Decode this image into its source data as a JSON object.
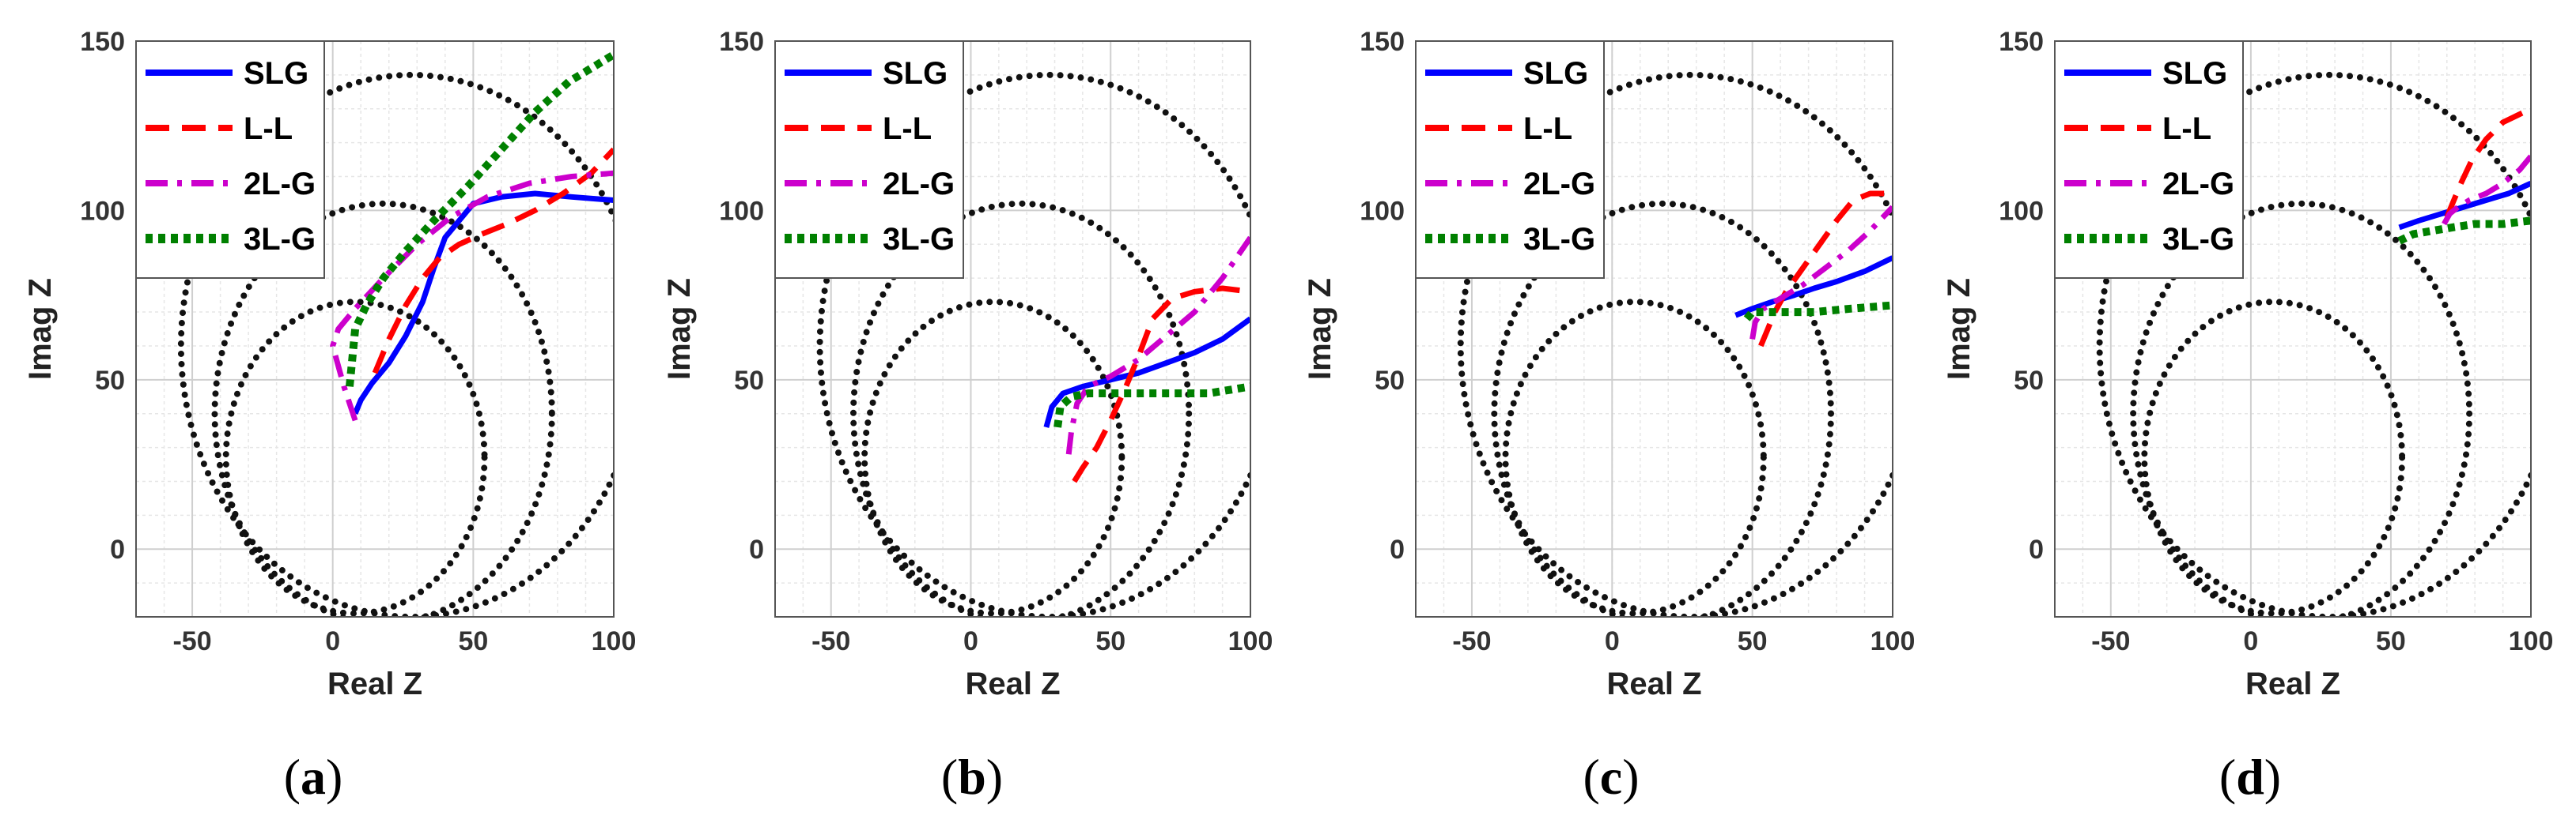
{
  "chart_data": [
    {
      "type": "line",
      "panel": "a",
      "caption_open": "(",
      "caption_letter": "a",
      "caption_close": ")",
      "xlabel": "Real Z",
      "ylabel": "Imag Z",
      "xlim": [
        -70,
        100
      ],
      "ylim": [
        -20,
        150
      ],
      "xticks": [
        -50,
        0,
        50,
        100
      ],
      "yticks": [
        0,
        50,
        100,
        150
      ],
      "grid": true,
      "legend_position": "top-left",
      "circles": [
        {
          "name": "small-circle",
          "center": [
            8,
            27
          ],
          "radius": [
            46,
            46
          ]
        },
        {
          "name": "middle-circle",
          "center": [
            18,
            40
          ],
          "radius": [
            60,
            62
          ]
        },
        {
          "name": "large-circle",
          "center": [
            28,
            60
          ],
          "radius": [
            82,
            80
          ]
        }
      ],
      "series": [
        {
          "name": "SLG",
          "color": "#0000ff",
          "dash": "solid",
          "x": [
            8,
            10,
            14,
            20,
            26,
            32,
            36,
            40,
            50,
            60,
            72,
            85,
            100
          ],
          "y": [
            40,
            44,
            49,
            55,
            63,
            73,
            83,
            92,
            102,
            104,
            105,
            104,
            103
          ]
        },
        {
          "name": "L-L",
          "color": "#ff0000",
          "dash": "dashed",
          "x": [
            15,
            20,
            26,
            32,
            38,
            45,
            53,
            62,
            72,
            82,
            92,
            100
          ],
          "y": [
            52,
            62,
            72,
            80,
            86,
            90,
            93,
            96,
            100,
            105,
            111,
            118
          ]
        },
        {
          "name": "2L-G",
          "color": "#cc00cc",
          "dash": "dashdot",
          "x": [
            8,
            4,
            0,
            2,
            8,
            18,
            30,
            42,
            55,
            70,
            85,
            100
          ],
          "y": [
            38,
            48,
            60,
            65,
            71,
            80,
            90,
            98,
            104,
            108,
            110,
            111
          ]
        },
        {
          "name": "3L-G",
          "color": "#008000",
          "dash": "dotted",
          "x": [
            6,
            8,
            12,
            18,
            26,
            36,
            48,
            60,
            72,
            84,
            100
          ],
          "y": [
            48,
            65,
            72,
            80,
            88,
            97,
            107,
            118,
            129,
            138,
            146
          ]
        }
      ]
    },
    {
      "type": "line",
      "panel": "b",
      "caption_open": "(",
      "caption_letter": "b",
      "caption_close": ")",
      "xlabel": "Real Z",
      "ylabel": "Imag Z",
      "xlim": [
        -70,
        100
      ],
      "ylim": [
        -20,
        150
      ],
      "xticks": [
        -50,
        0,
        50,
        100
      ],
      "yticks": [
        0,
        50,
        100,
        150
      ],
      "grid": true,
      "legend_position": "top-left",
      "circles": [
        {
          "name": "small-circle",
          "center": [
            8,
            27
          ],
          "radius": [
            46,
            46
          ]
        },
        {
          "name": "middle-circle",
          "center": [
            18,
            40
          ],
          "radius": [
            60,
            62
          ]
        },
        {
          "name": "large-circle",
          "center": [
            28,
            60
          ],
          "radius": [
            82,
            80
          ]
        }
      ],
      "series": [
        {
          "name": "SLG",
          "color": "#0000ff",
          "dash": "solid",
          "x": [
            27,
            29,
            33,
            40,
            50,
            60,
            70,
            80,
            90,
            100
          ],
          "y": [
            36,
            42,
            46,
            48,
            50,
            52,
            55,
            58,
            62,
            68
          ]
        },
        {
          "name": "L-L",
          "color": "#ff0000",
          "dash": "dashed",
          "x": [
            37,
            40,
            45,
            50,
            55,
            60,
            65,
            72,
            80,
            90,
            100
          ],
          "y": [
            20,
            24,
            30,
            38,
            47,
            57,
            68,
            74,
            76,
            77,
            76
          ]
        },
        {
          "name": "2L-G",
          "color": "#cc00cc",
          "dash": "dashdot",
          "x": [
            35,
            36,
            38,
            42,
            50,
            60,
            70,
            80,
            90,
            100
          ],
          "y": [
            28,
            35,
            43,
            48,
            51,
            56,
            63,
            70,
            80,
            92
          ]
        },
        {
          "name": "3L-G",
          "color": "#008000",
          "dash": "dotted",
          "x": [
            31,
            32,
            36,
            42,
            55,
            70,
            85,
            100
          ],
          "y": [
            36,
            42,
            45,
            46,
            46,
            46,
            46,
            48
          ]
        }
      ]
    },
    {
      "type": "line",
      "panel": "c",
      "caption_open": "(",
      "caption_letter": "c",
      "caption_close": ")",
      "xlabel": "Real Z",
      "ylabel": "Imag Z",
      "xlim": [
        -70,
        100
      ],
      "ylim": [
        -20,
        150
      ],
      "xticks": [
        -50,
        0,
        50,
        100
      ],
      "yticks": [
        0,
        50,
        100,
        150
      ],
      "grid": true,
      "legend_position": "top-left",
      "circles": [
        {
          "name": "small-circle",
          "center": [
            8,
            27
          ],
          "radius": [
            46,
            46
          ]
        },
        {
          "name": "middle-circle",
          "center": [
            18,
            40
          ],
          "radius": [
            60,
            62
          ]
        },
        {
          "name": "large-circle",
          "center": [
            28,
            60
          ],
          "radius": [
            82,
            80
          ]
        }
      ],
      "series": [
        {
          "name": "SLG",
          "color": "#0000ff",
          "dash": "solid",
          "x": [
            44,
            50,
            57,
            65,
            72,
            80,
            90,
            100
          ],
          "y": [
            69,
            71,
            73,
            75,
            77,
            79,
            82,
            86
          ]
        },
        {
          "name": "L-L",
          "color": "#ff0000",
          "dash": "dashed",
          "x": [
            53,
            55,
            58,
            62,
            68,
            74,
            80,
            86,
            92,
            100
          ],
          "y": [
            60,
            64,
            70,
            76,
            83,
            90,
            97,
            103,
            105,
            105
          ]
        },
        {
          "name": "2L-G",
          "color": "#cc00cc",
          "dash": "dashdot",
          "x": [
            50,
            51,
            54,
            60,
            68,
            76,
            84,
            92,
            100
          ],
          "y": [
            62,
            67,
            71,
            74,
            78,
            83,
            88,
            94,
            101
          ]
        },
        {
          "name": "3L-G",
          "color": "#008000",
          "dash": "dotted",
          "x": [
            48,
            50,
            55,
            62,
            72,
            85,
            100
          ],
          "y": [
            68,
            70,
            70,
            70,
            70,
            71,
            72
          ]
        }
      ]
    },
    {
      "type": "line",
      "panel": "d",
      "caption_open": "(",
      "caption_letter": "d",
      "caption_close": ")",
      "xlabel": "Real Z",
      "ylabel": "Imag Z",
      "xlim": [
        -70,
        100
      ],
      "ylim": [
        -20,
        150
      ],
      "xticks": [
        -50,
        0,
        50,
        100
      ],
      "yticks": [
        0,
        50,
        100,
        150
      ],
      "grid": true,
      "legend_position": "top-left",
      "circles": [
        {
          "name": "small-circle",
          "center": [
            8,
            27
          ],
          "radius": [
            46,
            46
          ]
        },
        {
          "name": "middle-circle",
          "center": [
            18,
            40
          ],
          "radius": [
            60,
            62
          ]
        },
        {
          "name": "large-circle",
          "center": [
            28,
            60
          ],
          "radius": [
            82,
            80
          ]
        }
      ],
      "series": [
        {
          "name": "SLG",
          "color": "#0000ff",
          "dash": "solid",
          "x": [
            53,
            60,
            68,
            76,
            84,
            92,
            100
          ],
          "y": [
            95,
            97,
            99,
            101,
            103,
            105,
            108
          ]
        },
        {
          "name": "L-L",
          "color": "#ff0000",
          "dash": "dashed",
          "x": [
            70,
            72,
            75,
            79,
            84,
            90,
            95,
            100
          ],
          "y": [
            98,
            102,
            108,
            115,
            121,
            126,
            128,
            130
          ]
        },
        {
          "name": "2L-G",
          "color": "#cc00cc",
          "dash": "dashdot",
          "x": [
            69,
            71,
            74,
            78,
            84,
            90,
            96,
            100
          ],
          "y": [
            96,
            99,
            101,
            103,
            105,
            108,
            112,
            116
          ]
        },
        {
          "name": "3L-G",
          "color": "#008000",
          "dash": "dotted",
          "x": [
            53,
            58,
            65,
            72,
            80,
            90,
            100
          ],
          "y": [
            91,
            93,
            94,
            95,
            96,
            96,
            97
          ]
        }
      ]
    }
  ]
}
